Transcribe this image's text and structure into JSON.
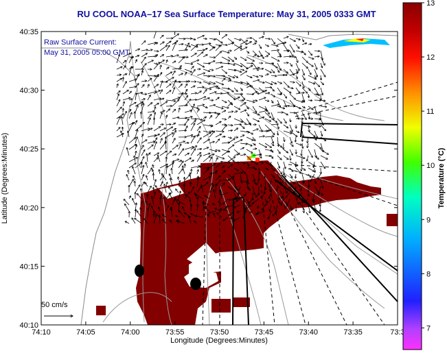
{
  "title": "RU COOL  NOAA–17  Sea Surface Temperature:  May 31, 2005 0333 GMT",
  "annotation": {
    "line1": "Raw Surface Current:",
    "line2": "May 31, 2005 05:00 GMT"
  },
  "scale_label": "50 cm/s",
  "axes": {
    "xlabel": "Longitude (Degrees:Minutes)",
    "ylabel": "Latitude (Degrees:Minutes)",
    "x_ticks": [
      "74:10",
      "74:05",
      "74:00",
      "73:55",
      "73:50",
      "73:45",
      "73:40",
      "73:35",
      "73:3"
    ],
    "y_ticks": [
      "40:35",
      "40:30",
      "40:25",
      "40:20",
      "40:15",
      "40:10"
    ]
  },
  "colorbar": {
    "label": "Temperature (°C)",
    "min": 6.6,
    "max": 13,
    "ticks": [
      "13",
      "12",
      "11",
      "10",
      "9",
      "8",
      "7"
    ]
  },
  "colors": {
    "sst_fill": "#820000",
    "land": "#ffffff",
    "title": "#1010a0"
  }
}
